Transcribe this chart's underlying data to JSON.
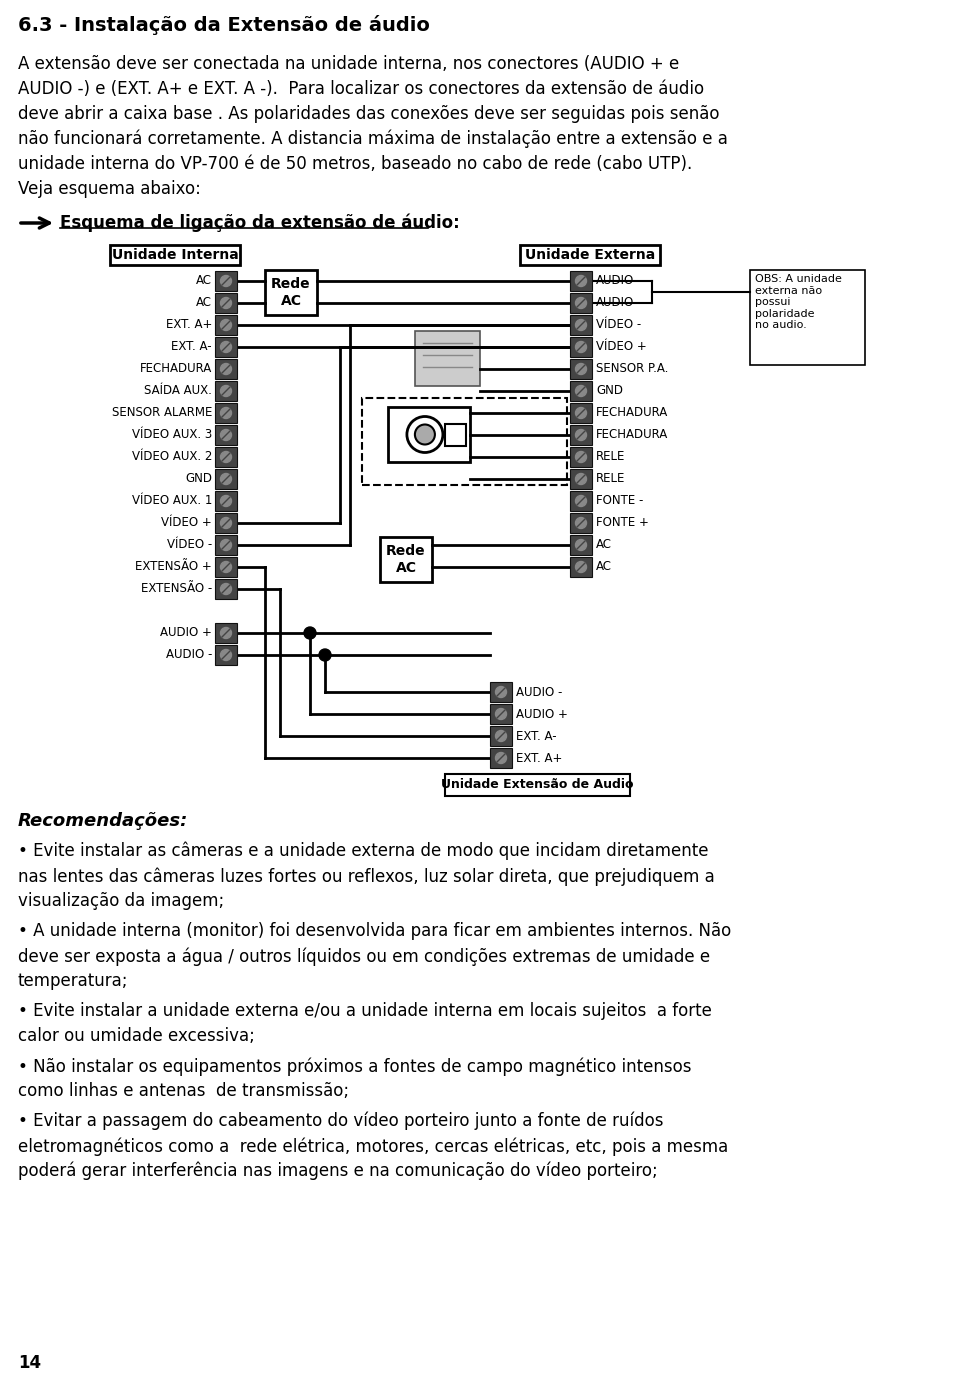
{
  "title": "6.3 - Instalação da Extensão de áudio",
  "para1_lines": [
    "A extensão deve ser conectada na unidade interna, nos conectores (AUDIO + e",
    "AUDIO -) e (EXT. A+ e EXT. A -).  Para localizar os conectores da extensão de áudio",
    "deve abrir a caixa base . As polaridades das conexões deve ser seguidas pois senão",
    "não funcionará corretamente. A distancia máxima de instalação entre a extensão e a",
    "unidade interna do VP-700 é de 50 metros, baseado no cabo de rede (cabo UTP).",
    "Veja esquema abaixo:"
  ],
  "arrow_label": "Esquema de ligação da extensão de áudio:",
  "label_unidade_interna": "Unidade Interna",
  "label_unidade_externa": "Unidade Externa",
  "label_rede_ac_1": "Rede\nAC",
  "label_rede_ac_2": "Rede\nAC",
  "obs_text": "OBS: A unidade\nexterna não\npossui\npolaridade\nno audio.",
  "left_connectors": [
    "AC",
    "AC",
    "EXT. A+",
    "EXT. A-",
    "FECHADURA",
    "SAÍDA AUX.",
    "SENSOR ALARME",
    "VÍDEO AUX. 3",
    "VÍDEO AUX. 2",
    "GND",
    "VÍDEO AUX. 1",
    "VÍDEO +",
    "VÍDEO -",
    "EXTENSÃO +",
    "EXTENSÃO -",
    null,
    "AUDIO +",
    "AUDIO -"
  ],
  "right_connectors_top": [
    "AUDIO",
    "AUDIO",
    "VÍDEO -",
    "VÍDEO +",
    "SENSOR P.A.",
    "GND",
    "FECHADURA",
    "FECHADURA",
    "RELE",
    "RELE",
    "FONTE -",
    "FONTE +",
    "AC",
    "AC"
  ],
  "right_connectors_bottom": [
    "AUDIO -",
    "AUDIO +",
    "EXT. A-",
    "EXT. A+"
  ],
  "label_ext_audio": "Unidade Extensão de Audio",
  "recomendacoes_title": "Recomendações:",
  "bullets": [
    "• Evite instalar as câmeras e a unidade externa de modo que incidam diretamente\nnas lentes das câmeras luzes fortes ou reflexos, luz solar direta, que prejudiquem a\nvisualização da imagem;",
    "• A unidade interna (monitor) foi desenvolvida para ficar em ambientes internos. Não\ndeve ser exposta a água / outros líquidos ou em condições extremas de umidade e\ntemperatura;",
    "• Evite instalar a unidade externa e/ou a unidade interna em locais sujeitos  a forte\ncalor ou umidade excessiva;",
    "• Não instalar os equipamentos próximos a fontes de campo magnético intensos\ncomo linhas e antenas  de transmissão;",
    "• Evitar a passagem do cabeamento do vídeo porteiro junto a fonte de ruídos\neletromagnéticos como a  rede elétrica, motores, cercas elétricas, etc, pois a mesma\npoderá gerar interferência nas imagens e na comunicação do vídeo porteiro;"
  ],
  "page_number": "14"
}
